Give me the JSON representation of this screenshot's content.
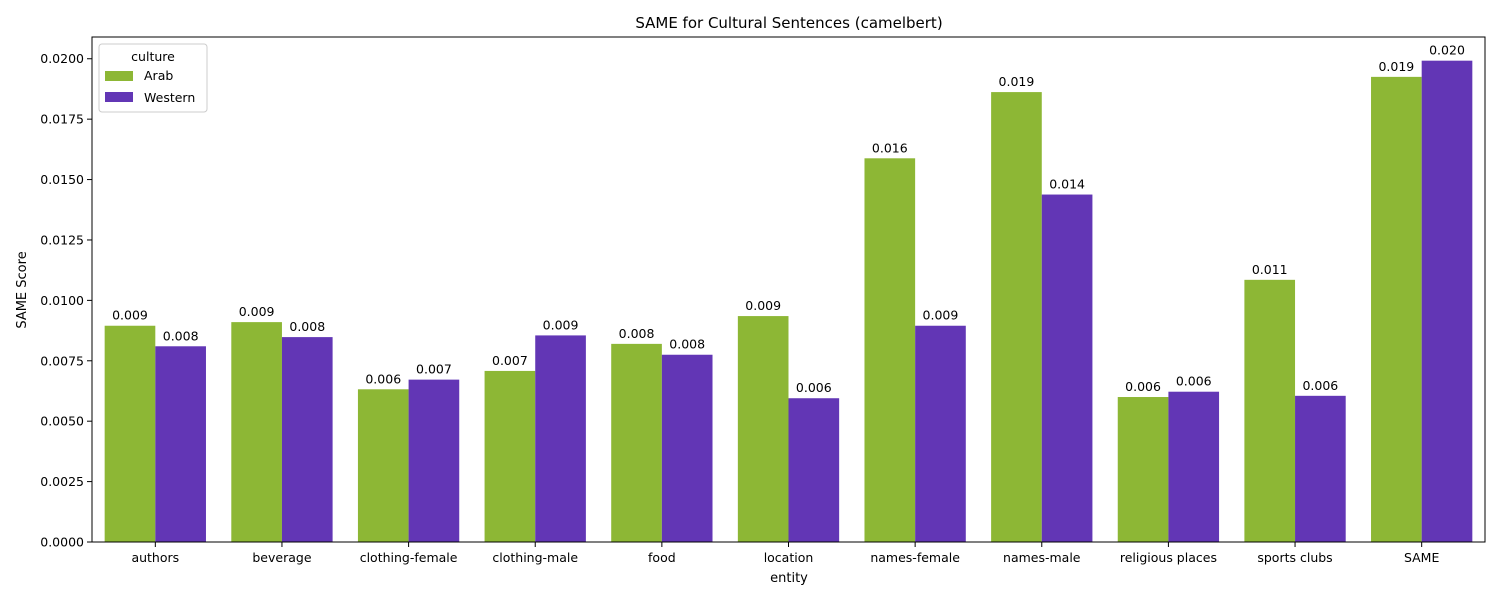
{
  "chart_data": {
    "type": "bar",
    "title": "SAME for Cultural Sentences (camelbert)",
    "xlabel": "entity",
    "ylabel": "SAME Score",
    "ylim": [
      0,
      0.0209
    ],
    "yticks": [
      "0.0000",
      "0.0025",
      "0.0050",
      "0.0075",
      "0.0100",
      "0.0125",
      "0.0150",
      "0.0175",
      "0.0200"
    ],
    "ytick_values": [
      0,
      0.0025,
      0.005,
      0.0075,
      0.01,
      0.0125,
      0.015,
      0.0175,
      0.02
    ],
    "categories": [
      "authors",
      "beverage",
      "clothing-female",
      "clothing-male",
      "food",
      "location",
      "names-female",
      "names-male",
      "religious places",
      "sports clubs",
      "SAME"
    ],
    "series": [
      {
        "name": "Arab",
        "color": "#8db735",
        "values": [
          0.00895,
          0.0091,
          0.00632,
          0.00708,
          0.0082,
          0.00935,
          0.01588,
          0.01862,
          0.006,
          0.01085,
          0.01925
        ],
        "labels": [
          "0.009",
          "0.009",
          "0.006",
          "0.007",
          "0.008",
          "0.009",
          "0.016",
          "0.019",
          "0.006",
          "0.011",
          "0.019"
        ]
      },
      {
        "name": "Western",
        "color": "#6236b5",
        "values": [
          0.0081,
          0.00848,
          0.00672,
          0.00855,
          0.00775,
          0.00595,
          0.00895,
          0.01438,
          0.00622,
          0.00605,
          0.01992
        ],
        "labels": [
          "0.008",
          "0.008",
          "0.007",
          "0.009",
          "0.008",
          "0.006",
          "0.009",
          "0.014",
          "0.006",
          "0.006",
          "0.020"
        ]
      }
    ],
    "legend": {
      "title": "culture",
      "placement": "top-left"
    },
    "grid": false
  }
}
